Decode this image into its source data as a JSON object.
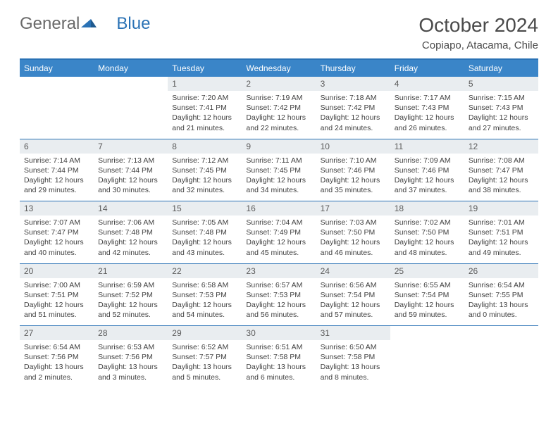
{
  "logo": {
    "general": "General",
    "blue": "Blue"
  },
  "title": "October 2024",
  "location": "Copiapo, Atacama, Chile",
  "colors": {
    "header_bg": "#3a85c8",
    "header_border": "#2a72b5",
    "daynum_bg": "#e9edf0",
    "text_dark": "#4a4a4a",
    "text_body": "#3f3f3f"
  },
  "day_headers": [
    "Sunday",
    "Monday",
    "Tuesday",
    "Wednesday",
    "Thursday",
    "Friday",
    "Saturday"
  ],
  "weeks": [
    [
      null,
      null,
      {
        "n": "1",
        "sr": "7:20 AM",
        "ss": "7:41 PM",
        "dh": "12",
        "dm": "21"
      },
      {
        "n": "2",
        "sr": "7:19 AM",
        "ss": "7:42 PM",
        "dh": "12",
        "dm": "22"
      },
      {
        "n": "3",
        "sr": "7:18 AM",
        "ss": "7:42 PM",
        "dh": "12",
        "dm": "24"
      },
      {
        "n": "4",
        "sr": "7:17 AM",
        "ss": "7:43 PM",
        "dh": "12",
        "dm": "26"
      },
      {
        "n": "5",
        "sr": "7:15 AM",
        "ss": "7:43 PM",
        "dh": "12",
        "dm": "27"
      }
    ],
    [
      {
        "n": "6",
        "sr": "7:14 AM",
        "ss": "7:44 PM",
        "dh": "12",
        "dm": "29"
      },
      {
        "n": "7",
        "sr": "7:13 AM",
        "ss": "7:44 PM",
        "dh": "12",
        "dm": "30"
      },
      {
        "n": "8",
        "sr": "7:12 AM",
        "ss": "7:45 PM",
        "dh": "12",
        "dm": "32"
      },
      {
        "n": "9",
        "sr": "7:11 AM",
        "ss": "7:45 PM",
        "dh": "12",
        "dm": "34"
      },
      {
        "n": "10",
        "sr": "7:10 AM",
        "ss": "7:46 PM",
        "dh": "12",
        "dm": "35"
      },
      {
        "n": "11",
        "sr": "7:09 AM",
        "ss": "7:46 PM",
        "dh": "12",
        "dm": "37"
      },
      {
        "n": "12",
        "sr": "7:08 AM",
        "ss": "7:47 PM",
        "dh": "12",
        "dm": "38"
      }
    ],
    [
      {
        "n": "13",
        "sr": "7:07 AM",
        "ss": "7:47 PM",
        "dh": "12",
        "dm": "40"
      },
      {
        "n": "14",
        "sr": "7:06 AM",
        "ss": "7:48 PM",
        "dh": "12",
        "dm": "42"
      },
      {
        "n": "15",
        "sr": "7:05 AM",
        "ss": "7:48 PM",
        "dh": "12",
        "dm": "43"
      },
      {
        "n": "16",
        "sr": "7:04 AM",
        "ss": "7:49 PM",
        "dh": "12",
        "dm": "45"
      },
      {
        "n": "17",
        "sr": "7:03 AM",
        "ss": "7:50 PM",
        "dh": "12",
        "dm": "46"
      },
      {
        "n": "18",
        "sr": "7:02 AM",
        "ss": "7:50 PM",
        "dh": "12",
        "dm": "48"
      },
      {
        "n": "19",
        "sr": "7:01 AM",
        "ss": "7:51 PM",
        "dh": "12",
        "dm": "49"
      }
    ],
    [
      {
        "n": "20",
        "sr": "7:00 AM",
        "ss": "7:51 PM",
        "dh": "12",
        "dm": "51"
      },
      {
        "n": "21",
        "sr": "6:59 AM",
        "ss": "7:52 PM",
        "dh": "12",
        "dm": "52"
      },
      {
        "n": "22",
        "sr": "6:58 AM",
        "ss": "7:53 PM",
        "dh": "12",
        "dm": "54"
      },
      {
        "n": "23",
        "sr": "6:57 AM",
        "ss": "7:53 PM",
        "dh": "12",
        "dm": "56"
      },
      {
        "n": "24",
        "sr": "6:56 AM",
        "ss": "7:54 PM",
        "dh": "12",
        "dm": "57"
      },
      {
        "n": "25",
        "sr": "6:55 AM",
        "ss": "7:54 PM",
        "dh": "12",
        "dm": "59"
      },
      {
        "n": "26",
        "sr": "6:54 AM",
        "ss": "7:55 PM",
        "dh": "13",
        "dm": "0"
      }
    ],
    [
      {
        "n": "27",
        "sr": "6:54 AM",
        "ss": "7:56 PM",
        "dh": "13",
        "dm": "2"
      },
      {
        "n": "28",
        "sr": "6:53 AM",
        "ss": "7:56 PM",
        "dh": "13",
        "dm": "3"
      },
      {
        "n": "29",
        "sr": "6:52 AM",
        "ss": "7:57 PM",
        "dh": "13",
        "dm": "5"
      },
      {
        "n": "30",
        "sr": "6:51 AM",
        "ss": "7:58 PM",
        "dh": "13",
        "dm": "6"
      },
      {
        "n": "31",
        "sr": "6:50 AM",
        "ss": "7:58 PM",
        "dh": "13",
        "dm": "8"
      },
      null,
      null
    ]
  ],
  "labels": {
    "sunrise": "Sunrise:",
    "sunset": "Sunset:",
    "daylight": "Daylight:",
    "hours": "hours",
    "and": "and",
    "minutes": "minutes."
  }
}
